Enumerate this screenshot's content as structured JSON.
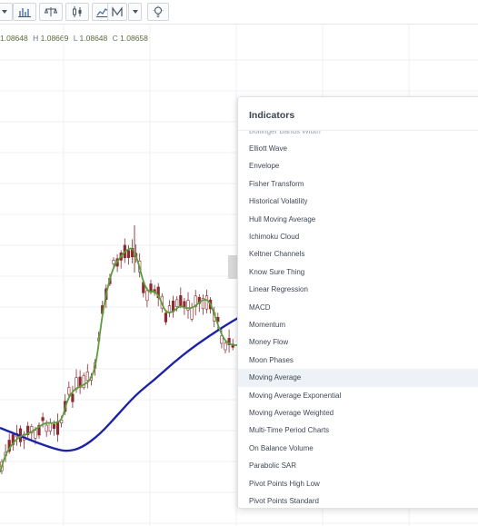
{
  "toolbar": {
    "buttons": [
      {
        "name": "dropdown-caret-icon",
        "icon": "caret"
      },
      {
        "name": "bar-chart-type-icon",
        "icon": "bars"
      },
      {
        "name": "compare-scale-icon",
        "icon": "scale"
      },
      {
        "name": "candlestick-icon",
        "icon": "candles"
      },
      {
        "name": "line-chart-icon",
        "icon": "line"
      },
      {
        "name": "drawing-tools-icon",
        "icon": "draw"
      },
      {
        "name": "more-caret-icon",
        "icon": "caret"
      },
      {
        "name": "idea-lightbulb-icon",
        "icon": "bulb"
      }
    ]
  },
  "ohlc": {
    "open": "1.08648",
    "high_label": "H",
    "high": "1.08669",
    "low_label": "L",
    "low": "1.08648",
    "close_label": "C",
    "close": "1.08658"
  },
  "indicators_panel": {
    "title": "Indicators",
    "partial_top": "Bollinger Bands Width",
    "highlighted": "Moving Average",
    "items": [
      "Elliott Wave",
      "Envelope",
      "Fisher Transform",
      "Historical Volatility",
      "Hull Moving Average",
      "Ichimoku Cloud",
      "Keltner Channels",
      "Know Sure Thing",
      "Linear Regression",
      "MACD",
      "Momentum",
      "Money Flow",
      "Moon Phases",
      "Moving Average",
      "Moving Average Exponential",
      "Moving Average Weighted",
      "Multi-Time Period Charts",
      "On Balance Volume",
      "Parabolic SAR",
      "Pivot Points High Low",
      "Pivot Points Standard"
    ]
  },
  "colors": {
    "fast_ma": "#5a9e3c",
    "slow_ma": "#1c23a8",
    "candle": "#8a2b30",
    "grid": "#eef0f3"
  }
}
